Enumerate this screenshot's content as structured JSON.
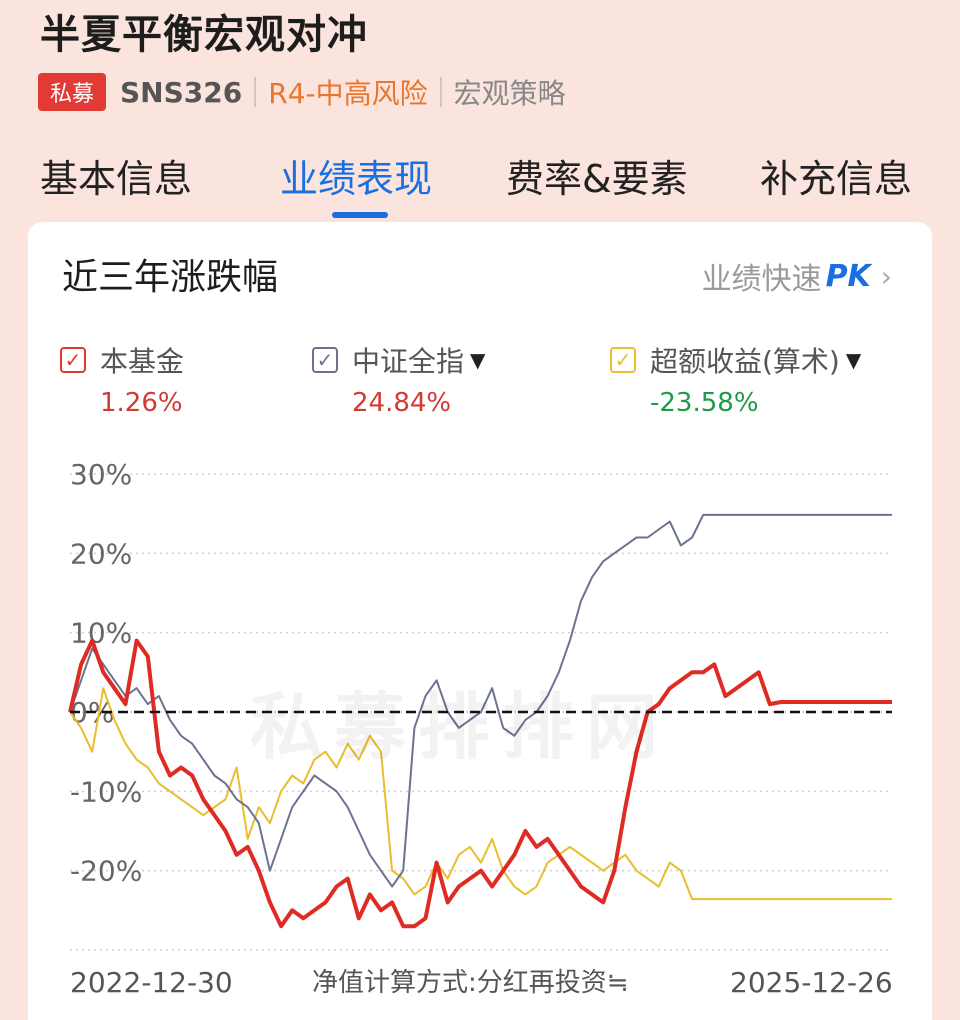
{
  "fund": {
    "title": "半夏平衡宏观对冲",
    "badge": "私募",
    "code": "SNS326",
    "risk": "R4-中高风险",
    "strategy": "宏观策略"
  },
  "tabs": [
    {
      "label": "基本信息",
      "active": false
    },
    {
      "label": "业绩表现",
      "active": true
    },
    {
      "label": "费率&要素",
      "active": false
    },
    {
      "label": "补充信息",
      "active": false
    }
  ],
  "card": {
    "title": "近三年涨跌幅",
    "pk_prefix": "业绩快速",
    "pk_strong": "PK",
    "pk_arrow": "›"
  },
  "legend": [
    {
      "label": "本基金",
      "value": "1.26%",
      "checkbox_color": "#e23a35",
      "value_color": "#d23a34",
      "dropdown": false
    },
    {
      "label": "中证全指",
      "value": "24.84%",
      "checkbox_color": "#6b7390",
      "value_color": "#d23a34",
      "dropdown": true
    },
    {
      "label": "超额收益(算术)",
      "value": "-23.58%",
      "checkbox_color": "#e9bd2c",
      "value_color": "#1f9a48",
      "dropdown": true
    }
  ],
  "footer": {
    "start_date": "2022-12-30",
    "method": "净值计算方式:分红再投资≒",
    "end_date": "2025-12-26"
  },
  "watermark": "私募排排网",
  "chart_data": {
    "type": "line",
    "ylim": [
      -30,
      30
    ],
    "yticks": [
      30,
      20,
      10,
      0,
      -10,
      -20
    ],
    "ytick_labels": [
      "30%",
      "20%",
      "10%",
      "0%",
      "-10%",
      "-20%"
    ],
    "grid": true,
    "x": [
      "2022-12-30",
      "2023-01-13",
      "2023-02-03",
      "2023-02-17",
      "2023-03-03",
      "2023-03-17",
      "2023-03-31",
      "2023-04-14",
      "2023-04-28",
      "2023-05-19",
      "2023-06-02",
      "2023-06-16",
      "2023-06-30",
      "2023-07-14",
      "2023-07-28",
      "2023-08-11",
      "2023-08-25",
      "2023-09-08",
      "2023-09-22",
      "2023-10-13",
      "2023-10-27",
      "2023-11-10",
      "2023-11-24",
      "2023-12-08",
      "2023-12-22",
      "2024-01-05",
      "2024-01-19",
      "2024-02-02",
      "2024-02-23",
      "2024-03-08",
      "2024-03-22",
      "2024-04-03",
      "2024-04-19",
      "2024-05-10",
      "2024-05-24",
      "2024-06-07",
      "2024-06-21",
      "2024-07-05",
      "2024-07-19",
      "2024-08-02",
      "2024-08-16",
      "2024-08-30",
      "2024-09-13",
      "2024-09-27",
      "2024-10-11",
      "2024-10-25",
      "2024-11-08",
      "2024-11-22",
      "2024-12-06",
      "2024-12-20",
      "2025-01-03",
      "2025-01-17",
      "2025-02-07",
      "2025-02-21",
      "2025-03-07",
      "2025-03-21",
      "2025-04-03",
      "2025-04-18",
      "2025-05-09",
      "2025-05-23",
      "2025-06-06",
      "2025-06-20",
      "2025-07-04",
      "2025-07-18",
      "2025-08-01",
      "2025-08-15",
      "2025-08-29",
      "2025-09-12",
      "2025-09-26",
      "2025-10-17",
      "2025-10-31",
      "2025-11-14",
      "2025-11-28",
      "2025-12-12",
      "2025-12-26"
    ],
    "series": [
      {
        "name": "本基金",
        "color": "#e02b25",
        "width": 4,
        "values": [
          0,
          6,
          9,
          5,
          3,
          1,
          9,
          7,
          -5,
          -8,
          -7,
          -8,
          -11,
          -13,
          -15,
          -18,
          -17,
          -20,
          -24,
          -27,
          -25,
          -26,
          -25,
          -24,
          -22,
          -21,
          -26,
          -23,
          -25,
          -24,
          -27,
          -27,
          -26,
          -19,
          -24,
          -22,
          -21,
          -20,
          -22,
          -20,
          -18,
          -15,
          -17,
          -16,
          -18,
          -20,
          -22,
          -23,
          -24,
          -20,
          -12,
          -5,
          0,
          1,
          3,
          4,
          5,
          5,
          6,
          2,
          3,
          4,
          5,
          1,
          1.26,
          1.26,
          1.26,
          1.26,
          1.26,
          1.26,
          1.26,
          1.26,
          1.26,
          1.26,
          1.26
        ]
      },
      {
        "name": "中证全指",
        "color": "#6b7390",
        "width": 2,
        "values": [
          0,
          4,
          8,
          6,
          4,
          2,
          3,
          1,
          2,
          -1,
          -3,
          -4,
          -6,
          -8,
          -9,
          -11,
          -12,
          -14,
          -20,
          -16,
          -12,
          -10,
          -8,
          -9,
          -10,
          -12,
          -15,
          -18,
          -20,
          -22,
          -20,
          -2,
          2,
          4,
          0,
          -2,
          -1,
          0,
          3,
          -2,
          -3,
          -1,
          0,
          2,
          5,
          9,
          14,
          17,
          19,
          20,
          21,
          22,
          22,
          23,
          24,
          21,
          22,
          24.84,
          24.84,
          24.84,
          24.84,
          24.84,
          24.84,
          24.84,
          24.84,
          24.84,
          24.84,
          24.84,
          24.84,
          24.84,
          24.84,
          24.84,
          24.84,
          24.84,
          24.84
        ]
      },
      {
        "name": "超额收益(算术)",
        "color": "#e9bd2c",
        "width": 2,
        "values": [
          0,
          -2,
          -5,
          3,
          -1,
          -4,
          -6,
          -7,
          -9,
          -10,
          -11,
          -12,
          -13,
          -12,
          -11,
          -7,
          -16,
          -12,
          -14,
          -10,
          -8,
          -9,
          -6,
          -5,
          -7,
          -4,
          -6,
          -3,
          -5,
          -20,
          -21,
          -23,
          -22,
          -19,
          -21,
          -18,
          -17,
          -19,
          -16,
          -20,
          -22,
          -23,
          -22,
          -19,
          -18,
          -17,
          -18,
          -19,
          -20,
          -19,
          -18,
          -20,
          -21,
          -22,
          -19,
          -20,
          -23.58,
          -23.58,
          -23.58,
          -23.58,
          -23.58,
          -23.58,
          -23.58,
          -23.58,
          -23.58,
          -23.58,
          -23.58,
          -23.58,
          -23.58,
          -23.58,
          -23.58,
          -23.58,
          -23.58,
          -23.58,
          -23.58
        ]
      }
    ],
    "zero_line": {
      "style": "dashed",
      "color": "#111111"
    }
  }
}
